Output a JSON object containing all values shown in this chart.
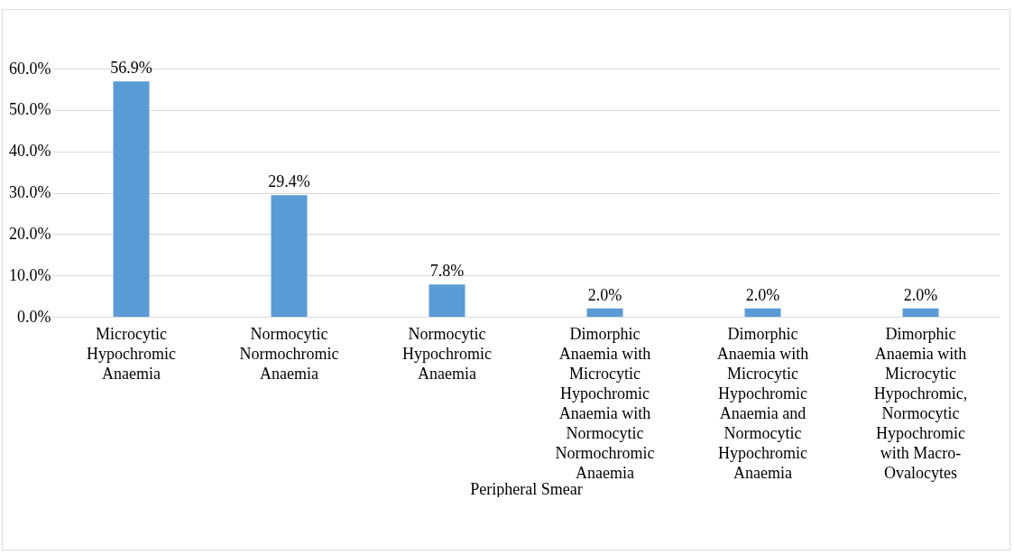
{
  "chart_data": {
    "type": "bar",
    "xlabel": "Peripheral Smear",
    "categories": [
      "Microcytic Hypochromic Anaemia",
      "Normocytic Normochromic Anaemia",
      "Normocytic Hypochromic Anaemia",
      "Dimorphic Anaemia with Microcytic Hypochromic Anaemia with Normocytic Normochromic Anaemia",
      "Dimorphic Anaemia with Microcytic Hypochromic Anaemia and Normocytic Hypochromic Anaemia",
      "Dimorphic Anaemia with Microcytic Hypochromic, Normocytic Hypochromic with Macro-Ovalocytes"
    ],
    "values": [
      56.9,
      29.4,
      7.8,
      2.0,
      2.0,
      2.0
    ],
    "value_labels": [
      "56.9%",
      "29.4%",
      "7.8%",
      "2.0%",
      "2.0%",
      "2.0%"
    ],
    "color": "#5b9bd5",
    "ylim": [
      0,
      60
    ],
    "yticks": [
      {
        "value": 0,
        "label": "0.0%"
      },
      {
        "value": 10,
        "label": "10.0%"
      },
      {
        "value": 20,
        "label": "20.0%"
      },
      {
        "value": 30,
        "label": "30.0%"
      },
      {
        "value": 40,
        "label": "40.0%"
      },
      {
        "value": 50,
        "label": "50.0%"
      },
      {
        "value": 60,
        "label": "60.0%"
      }
    ],
    "grid": "y"
  }
}
